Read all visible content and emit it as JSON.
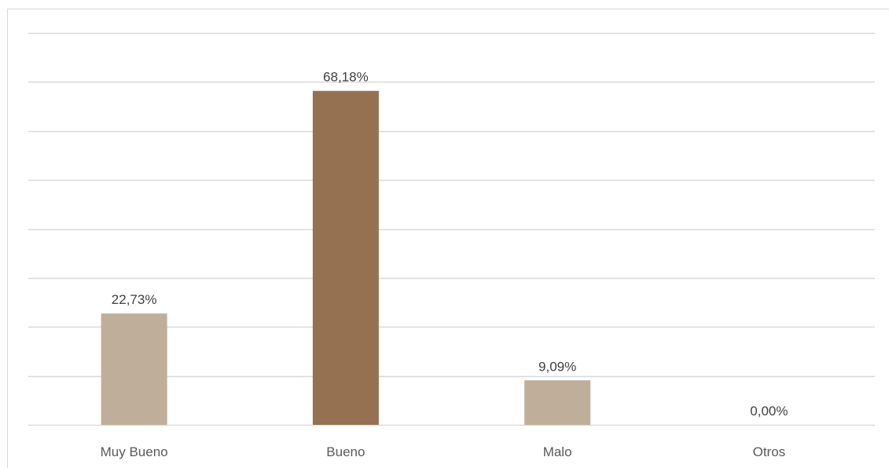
{
  "chart_data": {
    "type": "bar",
    "categories": [
      "Muy Bueno",
      "Bueno",
      "Malo",
      "Otros"
    ],
    "values": [
      22.73,
      68.18,
      9.09,
      0.0
    ],
    "data_labels": [
      "22,73%",
      "68,18%",
      "9,09%",
      "0,00%"
    ],
    "highlight_index": 1,
    "colors": {
      "bar": "#bfae9a",
      "highlight": "#957152",
      "grid": "#d9d9d9"
    },
    "ylim": [
      0,
      80
    ],
    "yticks_step": 10,
    "grid": true,
    "legend": "none",
    "title": "",
    "xlabel": "",
    "ylabel": ""
  }
}
